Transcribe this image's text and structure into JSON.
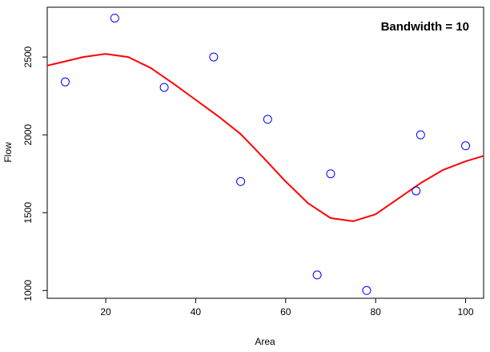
{
  "chart_data": {
    "type": "scatter",
    "xlabel": "Area",
    "ylabel": "Flow",
    "annotation": "Bandwidth = 10",
    "xlim": [
      7,
      104
    ],
    "ylim": [
      950,
      2820
    ],
    "x_ticks": [
      20,
      40,
      60,
      80,
      100
    ],
    "y_ticks": [
      1000,
      1500,
      2000,
      2500
    ],
    "grid": false,
    "series": [
      {
        "type": "scatter",
        "marker": "open-circle",
        "color": "#0000ff",
        "points": [
          {
            "x": 11,
            "y": 2340
          },
          {
            "x": 22,
            "y": 2750
          },
          {
            "x": 33,
            "y": 2305
          },
          {
            "x": 44,
            "y": 2500
          },
          {
            "x": 50,
            "y": 1700
          },
          {
            "x": 56,
            "y": 2100
          },
          {
            "x": 67,
            "y": 1100
          },
          {
            "x": 70,
            "y": 1750
          },
          {
            "x": 78,
            "y": 1000
          },
          {
            "x": 89,
            "y": 1640
          },
          {
            "x": 90,
            "y": 2000
          },
          {
            "x": 100,
            "y": 1930
          }
        ]
      },
      {
        "type": "line",
        "color": "#ff0000",
        "points": [
          {
            "x": 7,
            "y": 2445
          },
          {
            "x": 10,
            "y": 2465
          },
          {
            "x": 15,
            "y": 2500
          },
          {
            "x": 20,
            "y": 2520
          },
          {
            "x": 25,
            "y": 2500
          },
          {
            "x": 30,
            "y": 2430
          },
          {
            "x": 35,
            "y": 2330
          },
          {
            "x": 40,
            "y": 2225
          },
          {
            "x": 45,
            "y": 2120
          },
          {
            "x": 50,
            "y": 2005
          },
          {
            "x": 55,
            "y": 1855
          },
          {
            "x": 60,
            "y": 1700
          },
          {
            "x": 65,
            "y": 1560
          },
          {
            "x": 70,
            "y": 1465
          },
          {
            "x": 75,
            "y": 1445
          },
          {
            "x": 80,
            "y": 1490
          },
          {
            "x": 85,
            "y": 1590
          },
          {
            "x": 90,
            "y": 1690
          },
          {
            "x": 95,
            "y": 1775
          },
          {
            "x": 100,
            "y": 1830
          },
          {
            "x": 104,
            "y": 1865
          }
        ]
      }
    ]
  }
}
